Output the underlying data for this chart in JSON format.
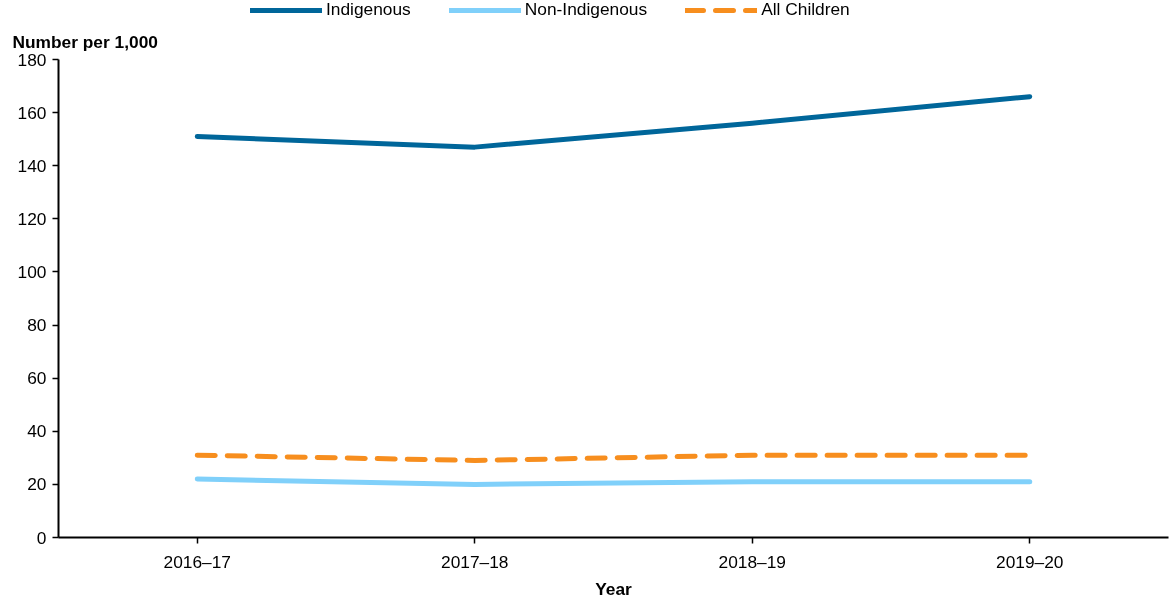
{
  "chart_data": {
    "type": "line",
    "ylabel": "Number per 1,000",
    "xlabel": "Year",
    "categories": [
      "2016–17",
      "2017–18",
      "2018–19",
      "2019–20"
    ],
    "ylim": [
      0,
      180
    ],
    "yticks": [
      0,
      20,
      40,
      60,
      80,
      100,
      120,
      140,
      160,
      180
    ],
    "grid": false,
    "legend": "top",
    "marker": "none",
    "line_style": "solid",
    "series": [
      {
        "name": "Indigenous",
        "color": "#00669a",
        "values": [
          151,
          147,
          156,
          166
        ]
      },
      {
        "name": "Non-Indigenous",
        "color": "#80d0fa",
        "values": [
          22,
          20,
          21,
          21
        ]
      },
      {
        "name": "All Children",
        "color": "#f78e1e",
        "values": [
          31,
          29,
          31,
          31
        ],
        "line_style": "dashed"
      }
    ]
  }
}
